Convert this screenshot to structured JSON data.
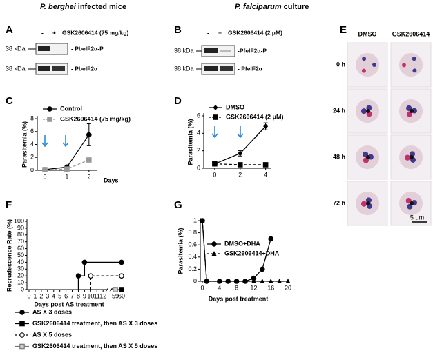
{
  "headers": [
    {
      "italic": "P. berghei",
      "text": "infected mice"
    },
    {
      "italic": "P. falciparum",
      "text": "culture"
    }
  ],
  "panel_labels": [
    "A",
    "B",
    "C",
    "D",
    "E",
    "F",
    "G"
  ],
  "blots": [
    {
      "minus": "-",
      "plus": "+",
      "treatment": "GSK2606414 (75 mg/kg)",
      "bands": [
        {
          "size": "38 kDa",
          "label": "- PbeIF2α-P"
        },
        {
          "size": "38 kDa",
          "label": "- PbeIF2α"
        }
      ]
    },
    {
      "minus": "-",
      "plus": "+",
      "treatment": "GSK2606414 (2 μM)",
      "bands": [
        {
          "size": "38 kDa",
          "label": "-PfeIF2α-P"
        },
        {
          "size": "38 kDa",
          "label": "- PfeIF2α"
        }
      ]
    }
  ],
  "microscopy": {
    "columns": [
      "DMSO",
      "GSK2606414"
    ],
    "rows": [
      "0 h",
      "24 h",
      "48 h",
      "72 h"
    ],
    "scale_bar": "5 μm"
  },
  "chart_data": [
    {
      "type": "line",
      "xlabel": "Days",
      "ylabel": "Parasitemia (%)",
      "x": [
        0,
        1,
        2
      ],
      "xlim": [
        -0.25,
        2.35
      ],
      "xticks": [
        0,
        1,
        2
      ],
      "ylim": [
        0,
        8
      ],
      "yticks": [
        0,
        2,
        4,
        6,
        8
      ],
      "series": [
        {
          "name": "Control",
          "color": "#000000",
          "marker": "circle",
          "dash": false,
          "values": [
            0.1,
            0.5,
            5.5
          ],
          "errors": [
            null,
            null,
            1.7
          ]
        },
        {
          "name": "GSK2606414 (75 mg/kg)",
          "color": "#999999",
          "marker": "square",
          "dash": true,
          "values": [
            0.1,
            0.2,
            1.6
          ],
          "errors": [
            null,
            null,
            0.2
          ]
        }
      ]
    },
    {
      "type": "line",
      "ylabel": "Parasitemia (%)",
      "x": [
        0,
        2,
        4
      ],
      "xlim": [
        -0.7,
        4.4
      ],
      "xticks": [
        0,
        2,
        4
      ],
      "ylim": [
        0,
        6
      ],
      "yticks": [
        0,
        2,
        4,
        6
      ],
      "series": [
        {
          "name": "DMSO",
          "color": "#000000",
          "marker": "diamond",
          "dash": false,
          "values": [
            0.5,
            1.7,
            4.8
          ],
          "errors": [
            null,
            0.3,
            0.4
          ]
        },
        {
          "name": "GSK2606414 (2 μM)",
          "color": "#000000",
          "marker": "square",
          "dash": true,
          "values": [
            0.5,
            0.4,
            0.4
          ]
        }
      ]
    },
    {
      "type": "line",
      "xlabel": "Days post AS treatment",
      "ylabel": "Recrudescence Rate (%)",
      "xlim": [
        0,
        60
      ],
      "xticks": [
        0,
        1,
        2,
        3,
        4,
        5,
        6,
        7,
        8,
        9,
        10,
        11,
        12,
        59,
        60
      ],
      "ylim": [
        0,
        100
      ],
      "yticks": [
        0,
        10,
        20,
        30,
        40,
        50,
        60,
        70,
        80,
        90,
        100
      ],
      "series": [
        {
          "name": "AS X 3 doses",
          "color": "#000000",
          "marker": "circle",
          "dash": false,
          "step": true,
          "x": [
            8,
            9,
            60
          ],
          "values": [
            20,
            40,
            40
          ]
        },
        {
          "name": "GSK2606414 treatment, then AS X 3 doses",
          "color": "#000000",
          "marker": "square",
          "dash": false,
          "x": [
            60
          ],
          "values": [
            0
          ]
        },
        {
          "name": "AS X 5 doses",
          "color": "#000000",
          "marker": "circle-open",
          "dash": true,
          "step": true,
          "x": [
            10,
            60
          ],
          "values": [
            20,
            20
          ]
        },
        {
          "name": "GSK2606414 treatment, then AS X 5 doses",
          "color": "#777777",
          "marker": "square-open",
          "dash": false,
          "x": [
            59
          ],
          "values": [
            0
          ]
        }
      ]
    },
    {
      "type": "line",
      "xlabel": "Days post treatment",
      "ylabel": "Parasitemia (%)",
      "xlim": [
        0,
        20
      ],
      "xticks": [
        0,
        4,
        8,
        12,
        16,
        20
      ],
      "ylim": [
        0,
        1
      ],
      "yticks": [
        0,
        0.2,
        0.4,
        0.6,
        0.8,
        1
      ],
      "series": [
        {
          "name": "DMSO+DHA",
          "color": "#000000",
          "marker": "circle",
          "dash": false,
          "x": [
            0,
            1,
            4,
            6,
            8,
            10,
            12,
            14,
            16
          ],
          "values": [
            1,
            0,
            0,
            0,
            0,
            0,
            0.05,
            0.2,
            0.7
          ]
        },
        {
          "name": "GSK2606414+DHA",
          "color": "#000000",
          "marker": "triangle",
          "dash": true,
          "x": [
            0,
            1,
            4,
            6,
            8,
            10,
            12,
            14,
            16,
            18,
            20
          ],
          "values": [
            1,
            0,
            0,
            0,
            0,
            0,
            0,
            0,
            0,
            0,
            0
          ]
        }
      ]
    }
  ]
}
